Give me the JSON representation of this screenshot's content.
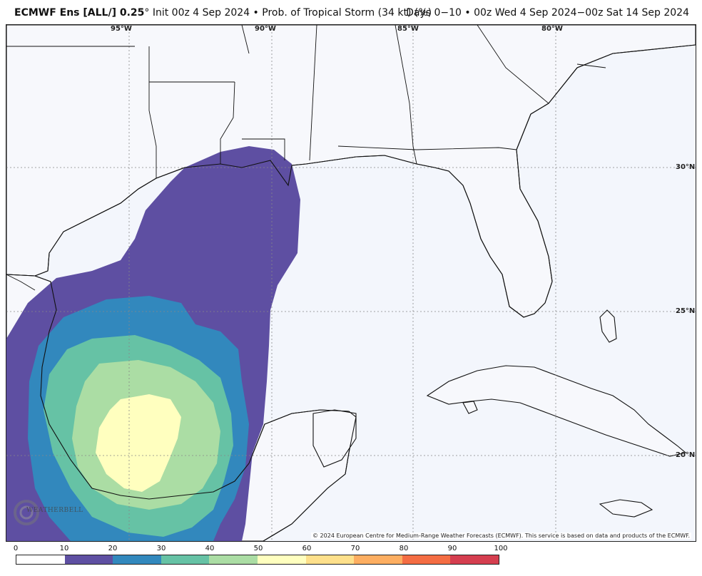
{
  "header": {
    "product": "ECMWF Ens [ALL/] 0.25",
    "degree": "°",
    "subtitle": " Init 00z 4 Sep 2024 • Prob. of Tropical Storm (34 kt) (%)",
    "valid": "Days 0−10 • 00z Wed 4 Sep 2024−00z Sat 14 Sep 2024"
  },
  "map": {
    "lon_labels": [
      "95°W",
      "90°W",
      "85°W",
      "80°W"
    ],
    "lat_labels": [
      "30°N",
      "25°N",
      "20°N"
    ],
    "copyright": "© 2024 European Centre for Medium-Range Weather Forecasts (ECMWF). This service is based on data and products of the ECMWF.",
    "logo_text": "WEATHERBELL"
  },
  "colorbar": {
    "ticks": [
      "0",
      "10",
      "20",
      "30",
      "40",
      "50",
      "60",
      "70",
      "80",
      "90",
      "100"
    ],
    "colors": [
      "#ffffff",
      "#5e4fa2",
      "#3288bd",
      "#66c2a5",
      "#abdda4",
      "#ffffbf",
      "#fee08b",
      "#fdae61",
      "#f46d43",
      "#d53e4f",
      "#9e0142"
    ]
  }
}
